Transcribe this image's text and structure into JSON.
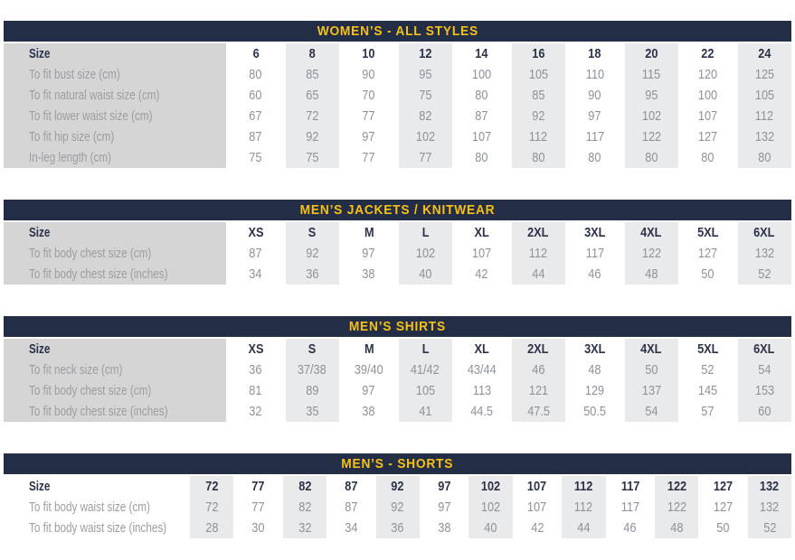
{
  "page": {
    "background": "#FFFFFF"
  },
  "colors": {
    "title_bar_bg": "#232D46",
    "title_text": "#F5C117",
    "label_column_bg": "#D5D5D6",
    "column_stripe_bg": "#E9EAEB",
    "heading_text": "#2B3249",
    "label_text": "#9A9DA1",
    "value_text": "#8D929B"
  },
  "tables": [
    {
      "id": "womens-all-styles",
      "title": "WOMEN’S - ALL STYLES",
      "size_label": "Size",
      "sizes": [
        "6",
        "8",
        "10",
        "12",
        "14",
        "16",
        "18",
        "20",
        "22",
        "24"
      ],
      "rows": [
        {
          "label": "To fit bust size (cm)",
          "values": [
            "80",
            "85",
            "90",
            "95",
            "100",
            "105",
            "110",
            "115",
            "120",
            "125"
          ]
        },
        {
          "label": "To fit natural waist size (cm)",
          "values": [
            "60",
            "65",
            "70",
            "75",
            "80",
            "85",
            "90",
            "95",
            "100",
            "105"
          ]
        },
        {
          "label": "To fit lower waist size (cm)",
          "values": [
            "67",
            "72",
            "77",
            "82",
            "87",
            "92",
            "97",
            "102",
            "107",
            "112"
          ]
        },
        {
          "label": "To fit hip size (cm)",
          "values": [
            "87",
            "92",
            "97",
            "102",
            "107",
            "112",
            "117",
            "122",
            "127",
            "132"
          ]
        },
        {
          "label": "In-leg length (cm)",
          "values": [
            "75",
            "75",
            "77",
            "77",
            "80",
            "80",
            "80",
            "80",
            "80",
            "80"
          ]
        }
      ],
      "label_column_shaded": true,
      "first_data_column_shaded": false
    },
    {
      "id": "mens-jackets-knitwear",
      "title": "MEN’S JACKETS / KNITWEAR",
      "size_label": "Size",
      "sizes": [
        "XS",
        "S",
        "M",
        "L",
        "XL",
        "2XL",
        "3XL",
        "4XL",
        "5XL",
        "6XL"
      ],
      "rows": [
        {
          "label": "To fit body chest size (cm)",
          "values": [
            "87",
            "92",
            "97",
            "102",
            "107",
            "112",
            "117",
            "122",
            "127",
            "132"
          ]
        },
        {
          "label": "To fit body chest size (inches)",
          "values": [
            "34",
            "36",
            "38",
            "40",
            "42",
            "44",
            "46",
            "48",
            "50",
            "52"
          ]
        }
      ],
      "label_column_shaded": true,
      "first_data_column_shaded": false
    },
    {
      "id": "mens-shirts",
      "title": "MEN’S SHIRTS",
      "size_label": "Size",
      "sizes": [
        "XS",
        "S",
        "M",
        "L",
        "XL",
        "2XL",
        "3XL",
        "4XL",
        "5XL",
        "6XL"
      ],
      "rows": [
        {
          "label": "To fit neck size (cm)",
          "values": [
            "36",
            "37/38",
            "39/40",
            "41/42",
            "43/44",
            "46",
            "48",
            "50",
            "52",
            "54"
          ]
        },
        {
          "label": "To fit body chest size (cm)",
          "values": [
            "81",
            "89",
            "97",
            "105",
            "113",
            "121",
            "129",
            "137",
            "145",
            "153"
          ]
        },
        {
          "label": "To fit body chest size (inches)",
          "values": [
            "32",
            "35",
            "38",
            "41",
            "44.5",
            "47.5",
            "50.5",
            "54",
            "57",
            "60"
          ]
        }
      ],
      "label_column_shaded": true,
      "first_data_column_shaded": false
    },
    {
      "id": "mens-shorts",
      "title": "MEN’S - SHORTS",
      "size_label": "Size",
      "sizes": [
        "72",
        "77",
        "82",
        "87",
        "92",
        "97",
        "102",
        "107",
        "112",
        "117",
        "122",
        "127",
        "132"
      ],
      "rows": [
        {
          "label": "To fit body waist size (cm)",
          "values": [
            "72",
            "77",
            "82",
            "87",
            "92",
            "97",
            "102",
            "107",
            "112",
            "117",
            "122",
            "127",
            "132"
          ]
        },
        {
          "label": "To fit body waist size (inches)",
          "values": [
            "28",
            "30",
            "32",
            "34",
            "36",
            "38",
            "40",
            "42",
            "44",
            "46",
            "48",
            "50",
            "52"
          ]
        }
      ],
      "label_column_shaded": false,
      "first_data_column_shaded": true
    }
  ]
}
